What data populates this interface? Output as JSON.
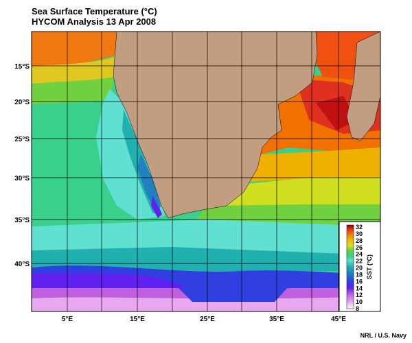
{
  "header": {
    "title": "Sea Surface Temperature (°C)",
    "subtitle": "HYCOM Analysis 13 Apr 2008"
  },
  "map": {
    "lat_labels": [
      "15°S",
      "20°S",
      "25°S",
      "30°S",
      "35°S",
      "40°S"
    ],
    "lon_labels": [
      "5°E",
      "15°E",
      "25°E",
      "35°E",
      "45°E"
    ],
    "land_color": "#c29d7f",
    "grid_color": "#000000"
  },
  "legend": {
    "ticks": [
      "32",
      "30",
      "28",
      "26",
      "24",
      "22",
      "20",
      "18",
      "16",
      "14",
      "12",
      "10",
      "8"
    ],
    "label": "SST (°C)",
    "colors": [
      "#ffffff",
      "#e8a8f0",
      "#c060e0",
      "#6020f0",
      "#3040e0",
      "#2080c0",
      "#20b0b0",
      "#60e0d0",
      "#30d080",
      "#70d040",
      "#d0e020",
      "#f0b000",
      "#f07000",
      "#e03020",
      "#900000"
    ]
  },
  "credit": "NRL / U.S. Navy"
}
